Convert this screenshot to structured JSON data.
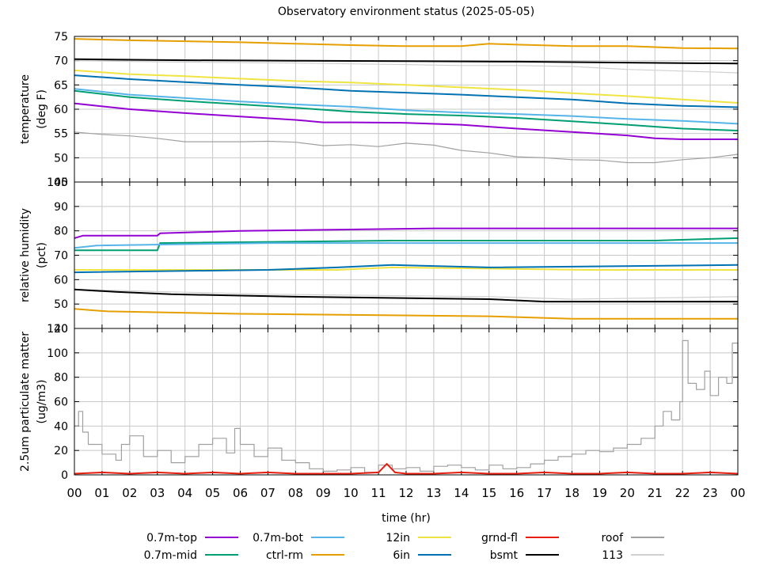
{
  "chart_data": {
    "type": "line",
    "title": "Observatory environment status (2025-05-05)",
    "xlabel": "time (hr)",
    "xlim": [
      0,
      24
    ],
    "x_tick_labels": [
      "00",
      "01",
      "02",
      "03",
      "04",
      "05",
      "06",
      "07",
      "08",
      "09",
      "10",
      "11",
      "12",
      "13",
      "14",
      "15",
      "16",
      "17",
      "18",
      "19",
      "20",
      "21",
      "22",
      "23",
      "00"
    ],
    "grid": true,
    "legend_position": "bottom",
    "legend": [
      {
        "name": "0.7m-top",
        "color": "#9400d3"
      },
      {
        "name": "0.7m-mid",
        "color": "#009e73"
      },
      {
        "name": "0.7m-bot",
        "color": "#56b4e9"
      },
      {
        "name": "ctrl-rm",
        "color": "#e69f00"
      },
      {
        "name": "12in",
        "color": "#f0e442"
      },
      {
        "name": "6in",
        "color": "#0072b2"
      },
      {
        "name": "grnd-fl",
        "color": "#e51e10"
      },
      {
        "name": "bsmt",
        "color": "#000000"
      },
      {
        "name": "roof",
        "color": "#a0a0a0"
      },
      {
        "name": "113",
        "color": "#d0d0d0"
      }
    ],
    "panels": [
      {
        "ylabel_line1": "temperature",
        "ylabel_line2": "(deg F)",
        "ylim": [
          45,
          75
        ],
        "y_ticks": [
          45,
          50,
          55,
          60,
          65,
          70,
          75
        ],
        "series": [
          {
            "name": "ctrl-rm",
            "color": "#e69f00",
            "x": [
              0,
              2,
              4,
              6,
              8,
              10,
              12,
              14,
              15,
              16,
              18,
              20,
              22,
              24
            ],
            "y": [
              74.5,
              74.2,
              74.0,
              73.8,
              73.5,
              73.2,
              73.0,
              73.0,
              73.5,
              73.3,
              73.0,
              73.0,
              72.6,
              72.5
            ]
          },
          {
            "name": "bsmt",
            "color": "#000000",
            "x": [
              0,
              4,
              8,
              12,
              16,
              20,
              24
            ],
            "y": [
              70.3,
              70.1,
              70.0,
              69.9,
              69.8,
              69.6,
              69.4
            ]
          },
          {
            "name": "113",
            "color": "#d0d0d0",
            "x": [
              0,
              4,
              8,
              12,
              14,
              16,
              18,
              20,
              24
            ],
            "y": [
              70.0,
              69.7,
              69.5,
              69.2,
              69.0,
              69.0,
              68.8,
              68.2,
              67.5
            ]
          },
          {
            "name": "12in",
            "color": "#f0e442",
            "x": [
              0,
              2,
              4,
              6,
              8,
              10,
              12,
              14,
              16,
              18,
              20,
              22,
              24
            ],
            "y": [
              68.0,
              67.2,
              66.8,
              66.3,
              65.8,
              65.5,
              65.0,
              64.5,
              64.0,
              63.3,
              62.7,
              62.0,
              61.3
            ]
          },
          {
            "name": "6in",
            "color": "#0072b2",
            "x": [
              0,
              2,
              4,
              6,
              8,
              10,
              12,
              14,
              16,
              18,
              20,
              22,
              24
            ],
            "y": [
              67.0,
              66.2,
              65.6,
              65.0,
              64.5,
              63.8,
              63.4,
              63.0,
              62.5,
              62.0,
              61.2,
              60.7,
              60.4
            ]
          },
          {
            "name": "0.7m-bot",
            "color": "#56b4e9",
            "x": [
              0,
              2,
              4,
              6,
              8,
              10,
              12,
              14,
              16,
              18,
              20,
              22,
              24
            ],
            "y": [
              64.2,
              63.0,
              62.3,
              61.6,
              61.0,
              60.5,
              59.8,
              59.3,
              59.0,
              58.6,
              58.0,
              57.6,
              57.0
            ]
          },
          {
            "name": "0.7m-mid",
            "color": "#009e73",
            "x": [
              0,
              2,
              4,
              6,
              8,
              10,
              12,
              14,
              16,
              18,
              20,
              22,
              24
            ],
            "y": [
              63.8,
              62.5,
              61.7,
              61.0,
              60.3,
              59.5,
              59.0,
              58.7,
              58.2,
              57.5,
              56.8,
              56.0,
              55.6
            ]
          },
          {
            "name": "0.7m-top",
            "color": "#9400d3",
            "x": [
              0,
              2,
              4,
              6,
              8,
              9,
              10,
              12,
              14,
              16,
              18,
              20,
              21,
              22,
              24
            ],
            "y": [
              61.2,
              60.0,
              59.2,
              58.5,
              57.8,
              57.3,
              57.3,
              57.2,
              56.8,
              56.0,
              55.3,
              54.6,
              54.0,
              53.8,
              53.8
            ]
          },
          {
            "name": "roof",
            "color": "#a0a0a0",
            "x": [
              0,
              1,
              2,
              3,
              4,
              5,
              6,
              7,
              8,
              9,
              10,
              11,
              12,
              13,
              14,
              15,
              16,
              17,
              18,
              19,
              20,
              21,
              22,
              23,
              24
            ],
            "y": [
              55.3,
              54.8,
              54.5,
              54.0,
              53.3,
              53.3,
              53.3,
              53.4,
              53.2,
              52.5,
              52.7,
              52.3,
              53.0,
              52.6,
              51.5,
              51.0,
              50.2,
              50.0,
              49.6,
              49.5,
              49.0,
              49.0,
              49.6,
              50.0,
              50.7
            ]
          }
        ]
      },
      {
        "ylabel_line1": "relative humidity",
        "ylabel_line2": "(pct)",
        "ylim": [
          40,
          100
        ],
        "y_ticks": [
          40,
          50,
          60,
          70,
          80,
          90,
          100
        ],
        "series": [
          {
            "name": "0.7m-top",
            "color": "#9400d3",
            "x": [
              0,
              0.3,
              3.0,
              3.1,
              6.0,
              13.0,
              24
            ],
            "y": [
              77,
              78,
              78,
              79,
              80,
              81,
              81
            ]
          },
          {
            "name": "0.7m-mid",
            "color": "#009e73",
            "x": [
              0,
              3.0,
              3.1,
              11.5,
              21.0,
              24
            ],
            "y": [
              72,
              72,
              75,
              76,
              76,
              77
            ]
          },
          {
            "name": "0.7m-bot",
            "color": "#56b4e9",
            "x": [
              0,
              0.8,
              7.0,
              13.0,
              24
            ],
            "y": [
              73,
              74,
              75,
              75,
              75
            ]
          },
          {
            "name": "12in",
            "color": "#f0e442",
            "x": [
              0,
              9.5,
              11.5,
              18.5,
              24
            ],
            "y": [
              64,
              64,
              65,
              64,
              64
            ]
          },
          {
            "name": "6in",
            "color": "#0072b2",
            "x": [
              0,
              7.0,
              9.5,
              11.5,
              15.0,
              24
            ],
            "y": [
              63,
              64,
              65,
              66,
              65,
              66
            ]
          },
          {
            "name": "113",
            "color": "#d0d0d0",
            "x": [
              0,
              3.5,
              7.0,
              15.0,
              18.0,
              24
            ],
            "y": [
              56,
              55,
              54,
              53,
              52,
              53
            ]
          },
          {
            "name": "bsmt",
            "color": "#000000",
            "x": [
              0,
              1.5,
              3.5,
              8.0,
              15.0,
              17.0,
              21.0,
              24
            ],
            "y": [
              56,
              55,
              54,
              53,
              52,
              51,
              51,
              51
            ]
          },
          {
            "name": "ctrl-rm",
            "color": "#e69f00",
            "x": [
              0,
              1.2,
              6.0,
              15.0,
              18.0,
              24
            ],
            "y": [
              48,
              47,
              46,
              45,
              44,
              44
            ]
          }
        ]
      },
      {
        "ylabel_line1": "2.5um particulate matter",
        "ylabel_line2": "(ug/m3)",
        "ylim": [
          0,
          120
        ],
        "y_ticks": [
          0,
          20,
          40,
          60,
          80,
          100,
          120
        ],
        "series": [
          {
            "name": "roof",
            "color": "#a0a0a0",
            "x": [
              0,
              0.15,
              0.3,
              0.5,
              1,
              1.5,
              1.7,
              2,
              2.5,
              3,
              3.5,
              4,
              4.5,
              5,
              5.5,
              5.8,
              6,
              6.5,
              7,
              7.5,
              8,
              8.5,
              9,
              9.5,
              10,
              10.5,
              11,
              11.5,
              12,
              12.5,
              13,
              13.5,
              14,
              14.5,
              15,
              15.5,
              16,
              16.5,
              17,
              17.5,
              18,
              18.5,
              19,
              19.5,
              20,
              20.5,
              21,
              21.3,
              21.6,
              21.9,
              22,
              22.2,
              22.5,
              22.8,
              23,
              23.3,
              23.6,
              23.8,
              24
            ],
            "y": [
              40,
              52,
              35,
              25,
              17,
              12,
              25,
              32,
              15,
              20,
              10,
              15,
              25,
              30,
              18,
              38,
              25,
              15,
              22,
              12,
              10,
              5,
              3,
              4,
              6,
              2,
              8,
              5,
              6,
              3,
              7,
              8,
              6,
              4,
              8,
              5,
              6,
              9,
              12,
              15,
              17,
              20,
              19,
              22,
              25,
              30,
              40,
              52,
              45,
              60,
              110,
              75,
              70,
              85,
              65,
              80,
              75,
              108,
              62
            ]
          },
          {
            "name": "grnd-fl",
            "color": "#e51e10",
            "x": [
              0,
              1,
              2,
              3,
              4,
              5,
              6,
              7,
              8,
              9,
              10,
              11,
              11.3,
              11.6,
              12,
              13,
              14,
              15,
              16,
              17,
              18,
              19,
              20,
              21,
              22,
              23,
              24
            ],
            "y": [
              1,
              2,
              1,
              2,
              1,
              2,
              1,
              2,
              1,
              1,
              1,
              2,
              9,
              2,
              1,
              1,
              2,
              1,
              1,
              2,
              1,
              1,
              2,
              1,
              1,
              2,
              1
            ]
          }
        ]
      }
    ]
  }
}
